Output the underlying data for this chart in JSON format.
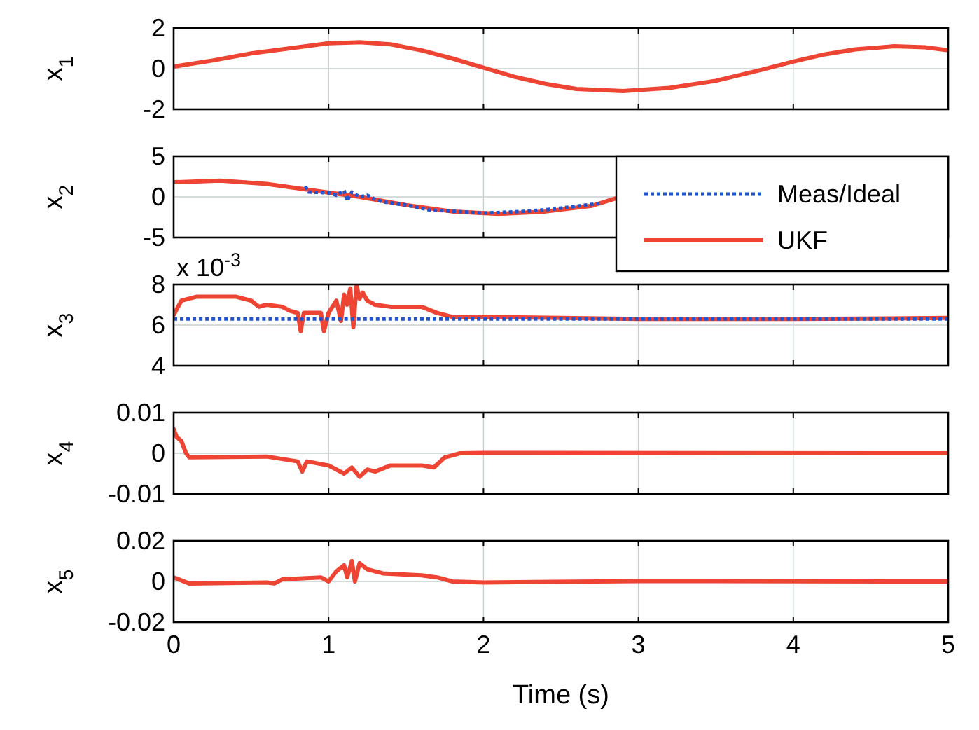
{
  "chart_data": [
    {
      "type": "line",
      "ylabel": "x$_{1}$",
      "xlim": [
        0,
        5
      ],
      "xticks": [
        0,
        1,
        2,
        3,
        4,
        5
      ],
      "ylim": [
        -2,
        2
      ],
      "yticks": [
        -2,
        0,
        2
      ],
      "grid": true,
      "tick_labels": "y",
      "line_style": "solid",
      "series": [
        {
          "color": "#ee4433",
          "x": [
            0,
            0.25,
            0.5,
            0.75,
            1.0,
            1.2,
            1.4,
            1.6,
            1.8,
            2.0,
            2.2,
            2.4,
            2.6,
            2.9,
            3.2,
            3.5,
            3.8,
            4.0,
            4.2,
            4.4,
            4.65,
            4.85,
            5
          ],
          "values": [
            0.1,
            0.4,
            0.75,
            1.0,
            1.25,
            1.3,
            1.2,
            0.9,
            0.5,
            0.05,
            -0.4,
            -0.75,
            -1.0,
            -1.1,
            -0.95,
            -0.6,
            -0.05,
            0.35,
            0.7,
            0.95,
            1.1,
            1.05,
            0.9
          ]
        }
      ]
    },
    {
      "type": "line",
      "ylabel": "x$_{2}$",
      "xlim": [
        0,
        5
      ],
      "xticks": [
        0,
        1,
        2,
        3,
        4,
        5
      ],
      "ylim": [
        -5,
        5
      ],
      "yticks": [
        -5,
        0,
        5
      ],
      "grid": true,
      "tick_labels": "y",
      "legend": "right",
      "series": [
        {
          "name": "Meas/Ideal",
          "color": "#2255cc",
          "line_style": "dotted",
          "x": [
            0.85,
            0.87,
            1.0,
            1.05,
            1.1,
            1.12,
            1.15,
            1.2,
            1.25,
            1.3,
            1.35,
            1.5,
            1.65,
            2.0,
            2.25,
            2.45,
            2.75
          ],
          "values": [
            1.3,
            0.6,
            0.5,
            0.2,
            0.8,
            -0.5,
            0.6,
            0.0,
            0.2,
            -0.3,
            -0.6,
            -1.0,
            -1.6,
            -2.0,
            -1.8,
            -1.5,
            -0.8
          ]
        },
        {
          "name": "UKF",
          "color": "#ee4433",
          "line_style": "solid",
          "x": [
            0,
            0.3,
            0.6,
            0.9,
            1.2,
            1.5,
            1.8,
            2.1,
            2.4,
            2.7,
            2.85
          ],
          "values": [
            1.8,
            2.0,
            1.6,
            0.8,
            0.0,
            -1.0,
            -1.8,
            -2.1,
            -1.8,
            -1.1,
            -0.2
          ]
        }
      ]
    },
    {
      "type": "line",
      "ylabel": "x$_{3}$",
      "annotations": [
        "x 10$^{-3}$"
      ],
      "xlim": [
        0,
        5
      ],
      "xticks": [
        0,
        1,
        2,
        3,
        4,
        5
      ],
      "ylim": [
        4,
        8
      ],
      "yticks": [
        4,
        6,
        8
      ],
      "grid": true,
      "tick_labels": "y",
      "series": [
        {
          "color": "#2255cc",
          "line_style": "dotted",
          "x": [
            0,
            5
          ],
          "values": [
            6.3,
            6.3
          ]
        },
        {
          "color": "#ee4433",
          "line_style": "solid",
          "x": [
            0,
            0.05,
            0.15,
            0.4,
            0.5,
            0.55,
            0.6,
            0.7,
            0.75,
            0.8,
            0.82,
            0.84,
            0.95,
            0.97,
            1.0,
            1.05,
            1.08,
            1.1,
            1.12,
            1.14,
            1.16,
            1.18,
            1.2,
            1.22,
            1.25,
            1.3,
            1.4,
            1.6,
            1.7,
            1.8,
            2.0,
            2.5,
            3.0,
            4.0,
            5.0
          ],
          "values": [
            6.5,
            7.2,
            7.4,
            7.4,
            7.2,
            6.9,
            7.0,
            6.9,
            6.7,
            6.6,
            5.7,
            6.6,
            6.6,
            5.7,
            6.6,
            7.2,
            6.2,
            7.5,
            7.0,
            7.8,
            5.9,
            7.95,
            7.3,
            7.6,
            7.2,
            7.0,
            6.9,
            6.9,
            6.6,
            6.4,
            6.4,
            6.35,
            6.3,
            6.3,
            6.35
          ]
        }
      ]
    },
    {
      "type": "line",
      "ylabel": "x$_{4}$",
      "xlim": [
        0,
        5
      ],
      "xticks": [
        0,
        1,
        2,
        3,
        4,
        5
      ],
      "ylim": [
        -0.01,
        0.01
      ],
      "yticks": [
        -0.01,
        0,
        0.01
      ],
      "grid": true,
      "tick_labels": "y",
      "line_style": "solid",
      "series": [
        {
          "color": "#ee4433",
          "x": [
            0,
            0.02,
            0.05,
            0.08,
            0.1,
            0.6,
            0.8,
            0.83,
            0.86,
            1.0,
            1.1,
            1.15,
            1.2,
            1.25,
            1.3,
            1.4,
            1.6,
            1.68,
            1.75,
            1.85,
            2.0,
            5.0
          ],
          "values": [
            0.006,
            0.004,
            0.003,
            0.0,
            -0.001,
            -0.0008,
            -0.002,
            -0.0045,
            -0.002,
            -0.003,
            -0.005,
            -0.0035,
            -0.0058,
            -0.004,
            -0.0045,
            -0.003,
            -0.003,
            -0.0035,
            -0.001,
            0.0,
            0.0001,
            0.0
          ]
        }
      ]
    },
    {
      "type": "line",
      "ylabel": "x$_{5}$",
      "xlabel": "Time (s)",
      "xlim": [
        0,
        5
      ],
      "xticks": [
        0,
        1,
        2,
        3,
        4,
        5
      ],
      "ylim": [
        -0.02,
        0.02
      ],
      "yticks": [
        -0.02,
        0,
        0.02
      ],
      "grid": true,
      "line_style": "solid",
      "series": [
        {
          "color": "#ee4433",
          "x": [
            0,
            0.1,
            0.6,
            0.65,
            0.7,
            0.95,
            1.0,
            1.05,
            1.1,
            1.12,
            1.15,
            1.17,
            1.2,
            1.25,
            1.35,
            1.6,
            1.7,
            1.8,
            2.0,
            3.0,
            5.0
          ],
          "values": [
            0.002,
            -0.001,
            -0.0005,
            -0.001,
            0.001,
            0.002,
            0.0,
            0.005,
            0.008,
            0.002,
            0.01,
            0.0,
            0.009,
            0.006,
            0.004,
            0.003,
            0.002,
            0.0,
            -0.0005,
            0.0002,
            0.0
          ]
        }
      ]
    }
  ]
}
